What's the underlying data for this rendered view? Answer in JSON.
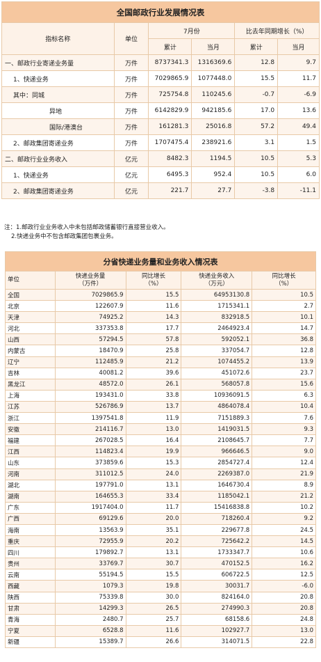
{
  "table1": {
    "title": "全国邮政行业发展情况表",
    "headers": {
      "indicator": "指标名称",
      "unit": "单位",
      "month_group": "7月份",
      "yoy_group": "比去年同期增长（%）",
      "cumulative": "累计",
      "current_month": "当月",
      "yoy_cumulative": "累计",
      "yoy_month": "当月"
    },
    "rows": [
      {
        "name": "一、邮政行业寄递业务量",
        "unit": "万件",
        "cum": "8737341.3",
        "month": "1316369.6",
        "yoy_cum": "12.8",
        "yoy_month": "9.7"
      },
      {
        "name": "1、快递业务",
        "unit": "万件",
        "cum": "7029865.9",
        "month": "1077448.0",
        "yoy_cum": "15.5",
        "yoy_month": "11.7"
      },
      {
        "name": "其中：同城",
        "unit": "万件",
        "cum": "725754.8",
        "month": "110245.6",
        "yoy_cum": "-0.7",
        "yoy_month": "-6.9"
      },
      {
        "name": "异地",
        "unit": "万件",
        "cum": "6142829.9",
        "month": "942185.6",
        "yoy_cum": "17.0",
        "yoy_month": "13.6"
      },
      {
        "name": "国际/港澳台",
        "unit": "万件",
        "cum": "161281.3",
        "month": "25016.8",
        "yoy_cum": "57.2",
        "yoy_month": "49.4"
      },
      {
        "name": "2、邮政集团寄递业务",
        "unit": "万件",
        "cum": "1707475.4",
        "month": "238921.6",
        "yoy_cum": "3.1",
        "yoy_month": "1.5"
      },
      {
        "name": "二、邮政行业业务收入",
        "unit": "亿元",
        "cum": "8482.3",
        "month": "1194.5",
        "yoy_cum": "10.5",
        "yoy_month": "5.3"
      },
      {
        "name": "1、快递业务",
        "unit": "亿元",
        "cum": "6495.3",
        "month": "952.4",
        "yoy_cum": "10.5",
        "yoy_month": "6.0"
      },
      {
        "name": "2、邮政集团寄递业务",
        "unit": "亿元",
        "cum": "221.7",
        "month": "27.7",
        "yoy_cum": "-3.8",
        "yoy_month": "-11.1"
      }
    ]
  },
  "notes": {
    "line1": "注：1.邮政行业业务收入中未包括邮政储蓄银行直接营业收入。",
    "line2": "2.快递业务中不包含邮政集团包裹业务。"
  },
  "table2": {
    "title": "分省快递业务量和业务收入情况表",
    "headers": {
      "unit": "单位",
      "volume_a": "快递业务量",
      "volume_b": "（万件）",
      "vol_growth_a": "同比增长",
      "vol_growth_b": "（%）",
      "revenue_a": "快递业务收入",
      "revenue_b": "（万元）",
      "rev_growth_a": "同比增长",
      "rev_growth_b": "（%）"
    },
    "rows": [
      {
        "region": "全国",
        "volume": "7029865.9",
        "vol_g": "15.5",
        "revenue": "64953130.8",
        "rev_g": "10.5"
      },
      {
        "region": "北京",
        "volume": "122607.9",
        "vol_g": "11.6",
        "revenue": "1715341.1",
        "rev_g": "2.7"
      },
      {
        "region": "天津",
        "volume": "74925.2",
        "vol_g": "14.3",
        "revenue": "832918.5",
        "rev_g": "10.1"
      },
      {
        "region": "河北",
        "volume": "337353.8",
        "vol_g": "17.7",
        "revenue": "2464923.4",
        "rev_g": "14.7"
      },
      {
        "region": "山西",
        "volume": "57294.5",
        "vol_g": "57.8",
        "revenue": "592052.1",
        "rev_g": "36.8"
      },
      {
        "region": "内蒙古",
        "volume": "18470.9",
        "vol_g": "25.8",
        "revenue": "337054.7",
        "rev_g": "12.8"
      },
      {
        "region": "辽宁",
        "volume": "112485.9",
        "vol_g": "21.2",
        "revenue": "1074455.2",
        "rev_g": "13.9"
      },
      {
        "region": "吉林",
        "volume": "40081.2",
        "vol_g": "39.6",
        "revenue": "451072.6",
        "rev_g": "23.7"
      },
      {
        "region": "黑龙江",
        "volume": "48572.0",
        "vol_g": "26.1",
        "revenue": "568057.8",
        "rev_g": "15.6"
      },
      {
        "region": "上海",
        "volume": "193431.0",
        "vol_g": "33.8",
        "revenue": "10936091.5",
        "rev_g": "6.3"
      },
      {
        "region": "江苏",
        "volume": "526786.9",
        "vol_g": "13.7",
        "revenue": "4864078.4",
        "rev_g": "10.4"
      },
      {
        "region": "浙江",
        "volume": "1397541.8",
        "vol_g": "11.9",
        "revenue": "7151889.3",
        "rev_g": "7.6"
      },
      {
        "region": "安徽",
        "volume": "214116.7",
        "vol_g": "13.0",
        "revenue": "1419031.5",
        "rev_g": "9.3"
      },
      {
        "region": "福建",
        "volume": "267028.5",
        "vol_g": "16.4",
        "revenue": "2108645.7",
        "rev_g": "7.7"
      },
      {
        "region": "江西",
        "volume": "114823.4",
        "vol_g": "19.9",
        "revenue": "966646.5",
        "rev_g": "9.0"
      },
      {
        "region": "山东",
        "volume": "373859.6",
        "vol_g": "15.3",
        "revenue": "2854727.4",
        "rev_g": "12.4"
      },
      {
        "region": "河南",
        "volume": "311012.5",
        "vol_g": "24.0",
        "revenue": "2269387.0",
        "rev_g": "21.9"
      },
      {
        "region": "湖北",
        "volume": "197791.0",
        "vol_g": "13.1",
        "revenue": "1646730.4",
        "rev_g": "8.9"
      },
      {
        "region": "湖南",
        "volume": "164655.3",
        "vol_g": "33.4",
        "revenue": "1185042.1",
        "rev_g": "21.2"
      },
      {
        "region": "广东",
        "volume": "1917404.0",
        "vol_g": "11.7",
        "revenue": "15416838.8",
        "rev_g": "10.2"
      },
      {
        "region": "广西",
        "volume": "69129.6",
        "vol_g": "20.0",
        "revenue": "718260.4",
        "rev_g": "9.2"
      },
      {
        "region": "海南",
        "volume": "13563.9",
        "vol_g": "35.1",
        "revenue": "229677.8",
        "rev_g": "24.5"
      },
      {
        "region": "重庆",
        "volume": "72955.9",
        "vol_g": "20.2",
        "revenue": "725642.2",
        "rev_g": "14.5"
      },
      {
        "region": "四川",
        "volume": "179892.7",
        "vol_g": "13.1",
        "revenue": "1733347.7",
        "rev_g": "10.6"
      },
      {
        "region": "贵州",
        "volume": "33769.7",
        "vol_g": "30.7",
        "revenue": "470152.5",
        "rev_g": "16.2"
      },
      {
        "region": "云南",
        "volume": "55194.5",
        "vol_g": "15.5",
        "revenue": "606722.5",
        "rev_g": "12.5"
      },
      {
        "region": "西藏",
        "volume": "1079.3",
        "vol_g": "19.8",
        "revenue": "30031.7",
        "rev_g": "-6.0"
      },
      {
        "region": "陕西",
        "volume": "75339.8",
        "vol_g": "30.0",
        "revenue": "824164.0",
        "rev_g": "20.8"
      },
      {
        "region": "甘肃",
        "volume": "14299.3",
        "vol_g": "26.5",
        "revenue": "274990.3",
        "rev_g": "20.8"
      },
      {
        "region": "青海",
        "volume": "2480.7",
        "vol_g": "25.7",
        "revenue": "68158.6",
        "rev_g": "24.8"
      },
      {
        "region": "宁夏",
        "volume": "6528.8",
        "vol_g": "11.6",
        "revenue": "102927.7",
        "rev_g": "13.0"
      },
      {
        "region": "新疆",
        "volume": "15389.7",
        "vol_g": "26.6",
        "revenue": "314071.5",
        "rev_g": "22.8"
      }
    ]
  }
}
